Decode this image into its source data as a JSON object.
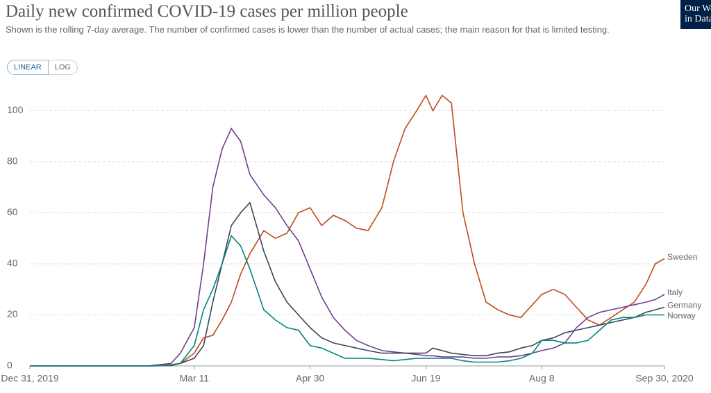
{
  "chart_data": {
    "type": "line",
    "title": "Daily new confirmed COVID-19 cases per million people",
    "subtitle": "Shown is the rolling 7-day average. The number of confirmed cases is lower than the number of actual cases; the main reason for that is limited testing.",
    "buttons": [
      "LINEAR",
      "LOG"
    ],
    "active_button": "LINEAR",
    "logo": [
      "Our World",
      "in Data"
    ],
    "log_scale": false,
    "grid": true,
    "x": [
      "2019-12-31",
      "2020-02-20",
      "2020-03-01",
      "2020-03-05",
      "2020-03-11",
      "2020-03-15",
      "2020-03-19",
      "2020-03-23",
      "2020-03-27",
      "2020-03-31",
      "2020-04-04",
      "2020-04-10",
      "2020-04-15",
      "2020-04-20",
      "2020-04-25",
      "2020-04-30",
      "2020-05-05",
      "2020-05-10",
      "2020-05-15",
      "2020-05-20",
      "2020-05-25",
      "2020-05-31",
      "2020-06-05",
      "2020-06-10",
      "2020-06-15",
      "2020-06-19",
      "2020-06-22",
      "2020-06-26",
      "2020-06-30",
      "2020-07-05",
      "2020-07-10",
      "2020-07-15",
      "2020-07-20",
      "2020-07-25",
      "2020-07-30",
      "2020-08-04",
      "2020-08-08",
      "2020-08-13",
      "2020-08-18",
      "2020-08-23",
      "2020-08-28",
      "2020-09-02",
      "2020-09-07",
      "2020-09-12",
      "2020-09-17",
      "2020-09-22",
      "2020-09-26",
      "2020-09-30"
    ],
    "xlim": [
      "2019-12-31",
      "2020-09-30"
    ],
    "xticks": [
      {
        "value": "2019-12-31",
        "label": "Dec 31, 2019"
      },
      {
        "value": "2020-03-11",
        "label": "Mar 11"
      },
      {
        "value": "2020-04-30",
        "label": "Apr 30"
      },
      {
        "value": "2020-06-19",
        "label": "Jun 19"
      },
      {
        "value": "2020-08-08",
        "label": "Aug 8"
      },
      {
        "value": "2020-09-30",
        "label": "Sep 30, 2020"
      }
    ],
    "ylim": [
      0,
      108
    ],
    "yticks": [
      0,
      20,
      40,
      60,
      80,
      100
    ],
    "series": [
      {
        "name": "Sweden",
        "color": "#be4a1c",
        "values": [
          0,
          0,
          0.5,
          1,
          5,
          11,
          12,
          18,
          25,
          36,
          44,
          53,
          50,
          52,
          60,
          62,
          55,
          59,
          57,
          54,
          53,
          62,
          80,
          93,
          100,
          106,
          100,
          106,
          103,
          60,
          40,
          25,
          22,
          20,
          19,
          24,
          28,
          30,
          28,
          23,
          18,
          16,
          19,
          22,
          25,
          32,
          40,
          42
        ]
      },
      {
        "name": "Italy",
        "color": "#6d3e91",
        "values": [
          0,
          0,
          1,
          5,
          15,
          40,
          70,
          85,
          93,
          88,
          75,
          67,
          62,
          55,
          49,
          38,
          27,
          19,
          14,
          10,
          8,
          6,
          5.5,
          5,
          4.5,
          4,
          4,
          3.5,
          3.5,
          3.5,
          3,
          3,
          3.5,
          3.5,
          4,
          5,
          6,
          7,
          9,
          15,
          19,
          21,
          22,
          23,
          24,
          25,
          26,
          28
        ]
      },
      {
        "name": "Germany",
        "color": "#3b4456",
        "values": [
          0,
          0,
          0.1,
          1,
          3,
          8,
          25,
          40,
          55,
          60,
          64,
          45,
          33,
          25,
          20,
          15,
          11,
          9,
          8,
          7,
          6,
          5,
          5,
          5,
          5,
          5,
          7,
          6,
          5,
          4.5,
          4,
          4,
          5,
          5.5,
          7,
          8,
          10,
          11,
          13,
          14,
          15,
          16,
          17,
          18,
          19,
          21,
          22,
          23
        ]
      },
      {
        "name": "Norway",
        "color": "#00847e",
        "values": [
          0,
          0,
          0.1,
          1,
          8,
          22,
          30,
          40,
          51,
          47,
          38,
          22,
          18,
          15,
          14,
          8,
          7,
          5,
          3,
          3,
          3,
          2.5,
          2,
          2.5,
          3,
          3,
          3,
          3,
          3,
          2,
          1.5,
          1.5,
          1.5,
          2,
          3,
          5,
          10,
          10,
          9,
          9,
          10,
          14,
          18,
          19,
          19,
          20,
          20,
          20
        ]
      }
    ]
  }
}
